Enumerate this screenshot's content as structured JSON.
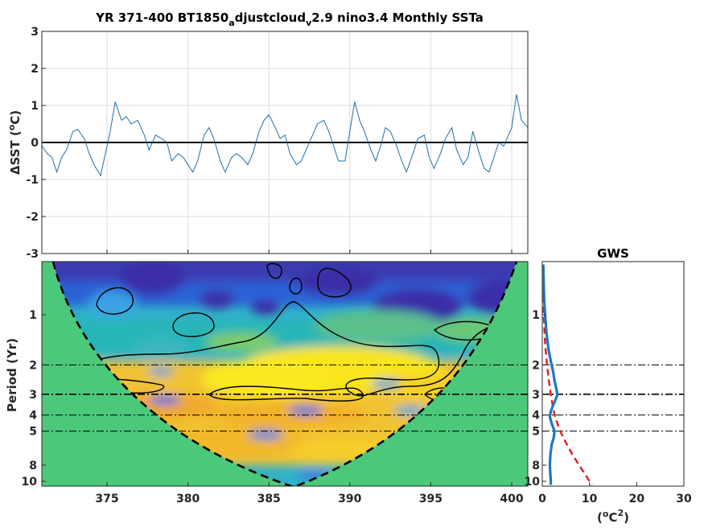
{
  "figure": {
    "title": "YR 371-400 BT1850_adjustcloud_v2.9 nino3.4 Monthly SSTa",
    "title_parts": {
      "a": "YR 371-400 BT1850",
      "b": "a",
      "c": "djustcloud",
      "d": "v",
      "e": "2.9 nino3.4 Monthly SSTa"
    }
  },
  "colors": {
    "series": "#1f6fa8",
    "zero_line": "#000000",
    "coi_fill": "#4cc87a",
    "gws_line": "#1f77c4",
    "significance": "#e41a1c",
    "axis": "#262626",
    "grid": "#dcdcdc"
  },
  "chart_data": [
    {
      "type": "line",
      "name": "timeseries",
      "ylabel": "ΔSST (°C)",
      "ylabel_parts": {
        "a": "ΔSST (",
        "b": "o",
        "c": "C)"
      },
      "xlim": [
        371,
        401
      ],
      "ylim": [
        -3,
        3
      ],
      "yticks": [
        -3,
        -2,
        -1,
        0,
        1,
        2,
        3
      ],
      "yticklabels": [
        "-3",
        "-2",
        "-1",
        "0",
        "1",
        "2",
        "3"
      ],
      "xticks": [
        375,
        380,
        385,
        390,
        395,
        400
      ],
      "grid": true,
      "zero_line": 0,
      "x": [
        371.0,
        371.3,
        371.6,
        371.9,
        372.2,
        372.5,
        372.9,
        373.2,
        373.6,
        373.9,
        374.2,
        374.6,
        374.9,
        375.2,
        375.5,
        375.9,
        376.2,
        376.5,
        376.9,
        377.3,
        377.6,
        378.0,
        378.4,
        378.7,
        379.0,
        379.4,
        379.7,
        380.0,
        380.3,
        380.6,
        381.0,
        381.3,
        381.6,
        382.0,
        382.3,
        382.7,
        383.0,
        383.3,
        383.7,
        384.0,
        384.4,
        384.7,
        385.0,
        385.4,
        385.7,
        386.0,
        386.3,
        386.7,
        387.0,
        387.4,
        387.7,
        388.0,
        388.4,
        388.7,
        389.0,
        389.3,
        389.7,
        390.0,
        390.3,
        390.6,
        390.9,
        391.3,
        391.6,
        391.9,
        392.2,
        392.5,
        392.9,
        393.2,
        393.5,
        393.9,
        394.2,
        394.6,
        394.9,
        395.2,
        395.6,
        395.9,
        396.3,
        396.6,
        397.0,
        397.3,
        397.6,
        398.0,
        398.3,
        398.6,
        398.9,
        399.2,
        399.5,
        399.8,
        400.0,
        400.3,
        400.6,
        401.0
      ],
      "values": [
        -0.1,
        -0.3,
        -0.4,
        -0.8,
        -0.4,
        -0.2,
        0.3,
        0.35,
        0.1,
        -0.3,
        -0.6,
        -0.9,
        -0.3,
        0.3,
        1.1,
        0.6,
        0.7,
        0.5,
        0.6,
        0.2,
        -0.2,
        0.2,
        0.1,
        0.0,
        -0.5,
        -0.3,
        -0.4,
        -0.6,
        -0.8,
        -0.5,
        0.2,
        0.4,
        0.1,
        -0.5,
        -0.8,
        -0.4,
        -0.3,
        -0.4,
        -0.6,
        -0.3,
        0.3,
        0.6,
        0.75,
        0.4,
        0.1,
        0.2,
        -0.3,
        -0.6,
        -0.5,
        -0.1,
        0.2,
        0.5,
        0.6,
        0.3,
        -0.1,
        -0.5,
        -0.5,
        0.3,
        1.1,
        0.6,
        0.3,
        -0.2,
        -0.5,
        -0.1,
        0.4,
        0.3,
        -0.1,
        -0.5,
        -0.8,
        -0.3,
        0.1,
        0.2,
        -0.4,
        -0.7,
        -0.3,
        0.1,
        0.4,
        -0.2,
        -0.6,
        -0.4,
        0.3,
        -0.3,
        -0.7,
        -0.8,
        -0.4,
        0.0,
        -0.1,
        0.2,
        0.4,
        1.3,
        0.6,
        0.4
      ]
    },
    {
      "type": "heatmap",
      "name": "wavelet",
      "ylabel": "Period (Yr)",
      "xlim": [
        371,
        401
      ],
      "ylim": [
        0.5,
        10.5
      ],
      "yscale": "log",
      "yticks": [
        1,
        2,
        3,
        4,
        5,
        8,
        10
      ],
      "yticklabels": [
        "1",
        "2",
        "3",
        "4",
        "5",
        "8",
        "10"
      ],
      "xticks": [
        375,
        380,
        385,
        390,
        395,
        400
      ],
      "xticklabels": [
        "375",
        "380",
        "385",
        "390",
        "395",
        "400"
      ],
      "reference_periods": [
        2,
        3,
        4,
        5
      ]
    },
    {
      "type": "line",
      "name": "global_wavelet_spectrum",
      "title": "GWS",
      "xlabel": "(°C²)",
      "xlabel_parts": {
        "a": "(",
        "b": "o",
        "c": "C",
        "d": "2",
        "e": ")"
      },
      "xlim": [
        0,
        30
      ],
      "xticks": [
        0,
        10,
        20,
        30
      ],
      "xticklabels": [
        "0",
        "10",
        "20",
        "30"
      ],
      "yticks": [
        1,
        2,
        3,
        4,
        5,
        8,
        10
      ],
      "yticklabels": [
        "1",
        "2",
        "3",
        "4",
        "5",
        "8",
        "10"
      ],
      "reference_periods": [
        2,
        3,
        4,
        5
      ],
      "series": [
        {
          "role": "spectrum",
          "period": [
            0.5,
            0.8,
            1.0,
            1.3,
            1.6,
            1.9,
            2.2,
            2.5,
            2.8,
            3.0,
            3.2,
            3.5,
            3.8,
            4.1,
            4.5,
            5.0,
            5.5,
            6.0,
            7.0,
            8.0,
            9.0,
            10.0,
            10.5
          ],
          "values": [
            0.2,
            0.4,
            0.6,
            0.9,
            1.3,
            1.8,
            2.3,
            2.6,
            3.0,
            3.2,
            2.9,
            2.3,
            1.8,
            1.6,
            2.0,
            2.6,
            2.4,
            2.0,
            1.7,
            1.6,
            1.7,
            1.8,
            1.8
          ]
        },
        {
          "role": "significance",
          "period": [
            0.5,
            1.0,
            1.5,
            2.0,
            2.5,
            3.0,
            3.5,
            4.0,
            4.5,
            5.0,
            6.0,
            7.0,
            8.0,
            9.0,
            10.0,
            10.5
          ],
          "values": [
            0.1,
            0.3,
            0.6,
            1.0,
            1.4,
            1.8,
            2.2,
            2.6,
            3.2,
            3.8,
            5.2,
            6.5,
            7.8,
            9.0,
            10.0,
            10.5
          ]
        }
      ]
    }
  ]
}
